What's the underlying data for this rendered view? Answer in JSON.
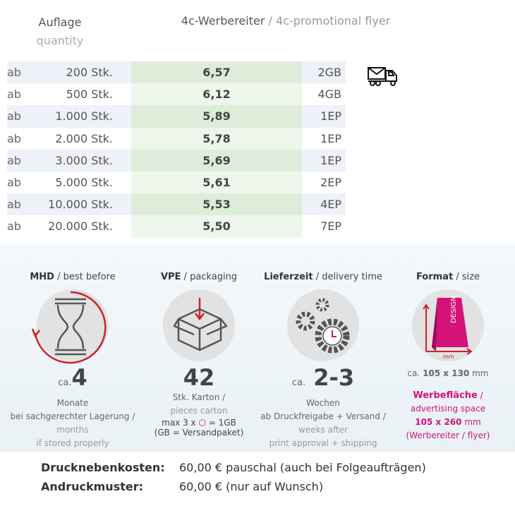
{
  "header": {
    "qty_de": "Auflage",
    "qty_en": "quantity",
    "title_de": "4c-Werbereiter",
    "title_sep": " / ",
    "title_en": "4c-promotional flyer"
  },
  "rows": [
    {
      "ab": "ab",
      "qty": "200 Stk.",
      "price": "6,57",
      "unit": "2GB"
    },
    {
      "ab": "ab",
      "qty": "500 Stk.",
      "price": "6,12",
      "unit": "4GB"
    },
    {
      "ab": "ab",
      "qty": "1.000 Stk.",
      "price": "5,89",
      "unit": "1EP"
    },
    {
      "ab": "ab",
      "qty": "2.000 Stk.",
      "price": "5,78",
      "unit": "1EP"
    },
    {
      "ab": "ab",
      "qty": "3.000 Stk.",
      "price": "5,69",
      "unit": "1EP"
    },
    {
      "ab": "ab",
      "qty": "5.000 Stk.",
      "price": "5,61",
      "unit": "2EP"
    },
    {
      "ab": "ab",
      "qty": "10.000 Stk.",
      "price": "5,53",
      "unit": "4EP"
    },
    {
      "ab": "ab",
      "qty": "20.000 Stk.",
      "price": "5,50",
      "unit": "7EP"
    }
  ],
  "info": {
    "mhd": {
      "h_de": "MHD",
      "h_en": " / best before",
      "ca": "ca.",
      "value": "4",
      "l1": "Monate",
      "l2": "bei sachgerechter Lagerung /",
      "l3": "months",
      "l4": "if stored properly"
    },
    "vpe": {
      "h_de": "VPE",
      "h_en": " / packaging",
      "value": "42",
      "l1": "Stk. Karton /",
      "l2": "pieces carton",
      "l3a": "max 3 x",
      "l3b": "= 1GB",
      "l4": "(GB = Versandpaket)"
    },
    "lz": {
      "h_de": "Lieferzeit",
      "h_en": " / delivery time",
      "ca": "ca.",
      "value": "2-3",
      "l1": "Wochen",
      "l2": "ab Druckfreigabe + Versand /",
      "l3": "weeks after",
      "l4": "print approval + shipping"
    },
    "fmt": {
      "h_de": "Format",
      "h_en": " / size",
      "ca": "ca.",
      "size": "105 x 130",
      "mm": "mm",
      "icon_design": "DESIGN",
      "icon_mm": "mm",
      "adv_de": "Werbefläche",
      "adv_sep": " /",
      "adv_en": "advertising space",
      "adv_size": "105 x 260",
      "adv_mm": " mm",
      "adv_note": "(Werbereiter / flyer)"
    }
  },
  "footer": [
    {
      "label": "Drucknebenkosten:",
      "value": "60,00 € pauschal (auch bei Folgeaufträgen)"
    },
    {
      "label": "Andruckmuster:",
      "value": "60,00 € (nur auf Wunsch)"
    }
  ],
  "colors": {
    "accent": "#d4127a",
    "red": "#d0202a"
  }
}
